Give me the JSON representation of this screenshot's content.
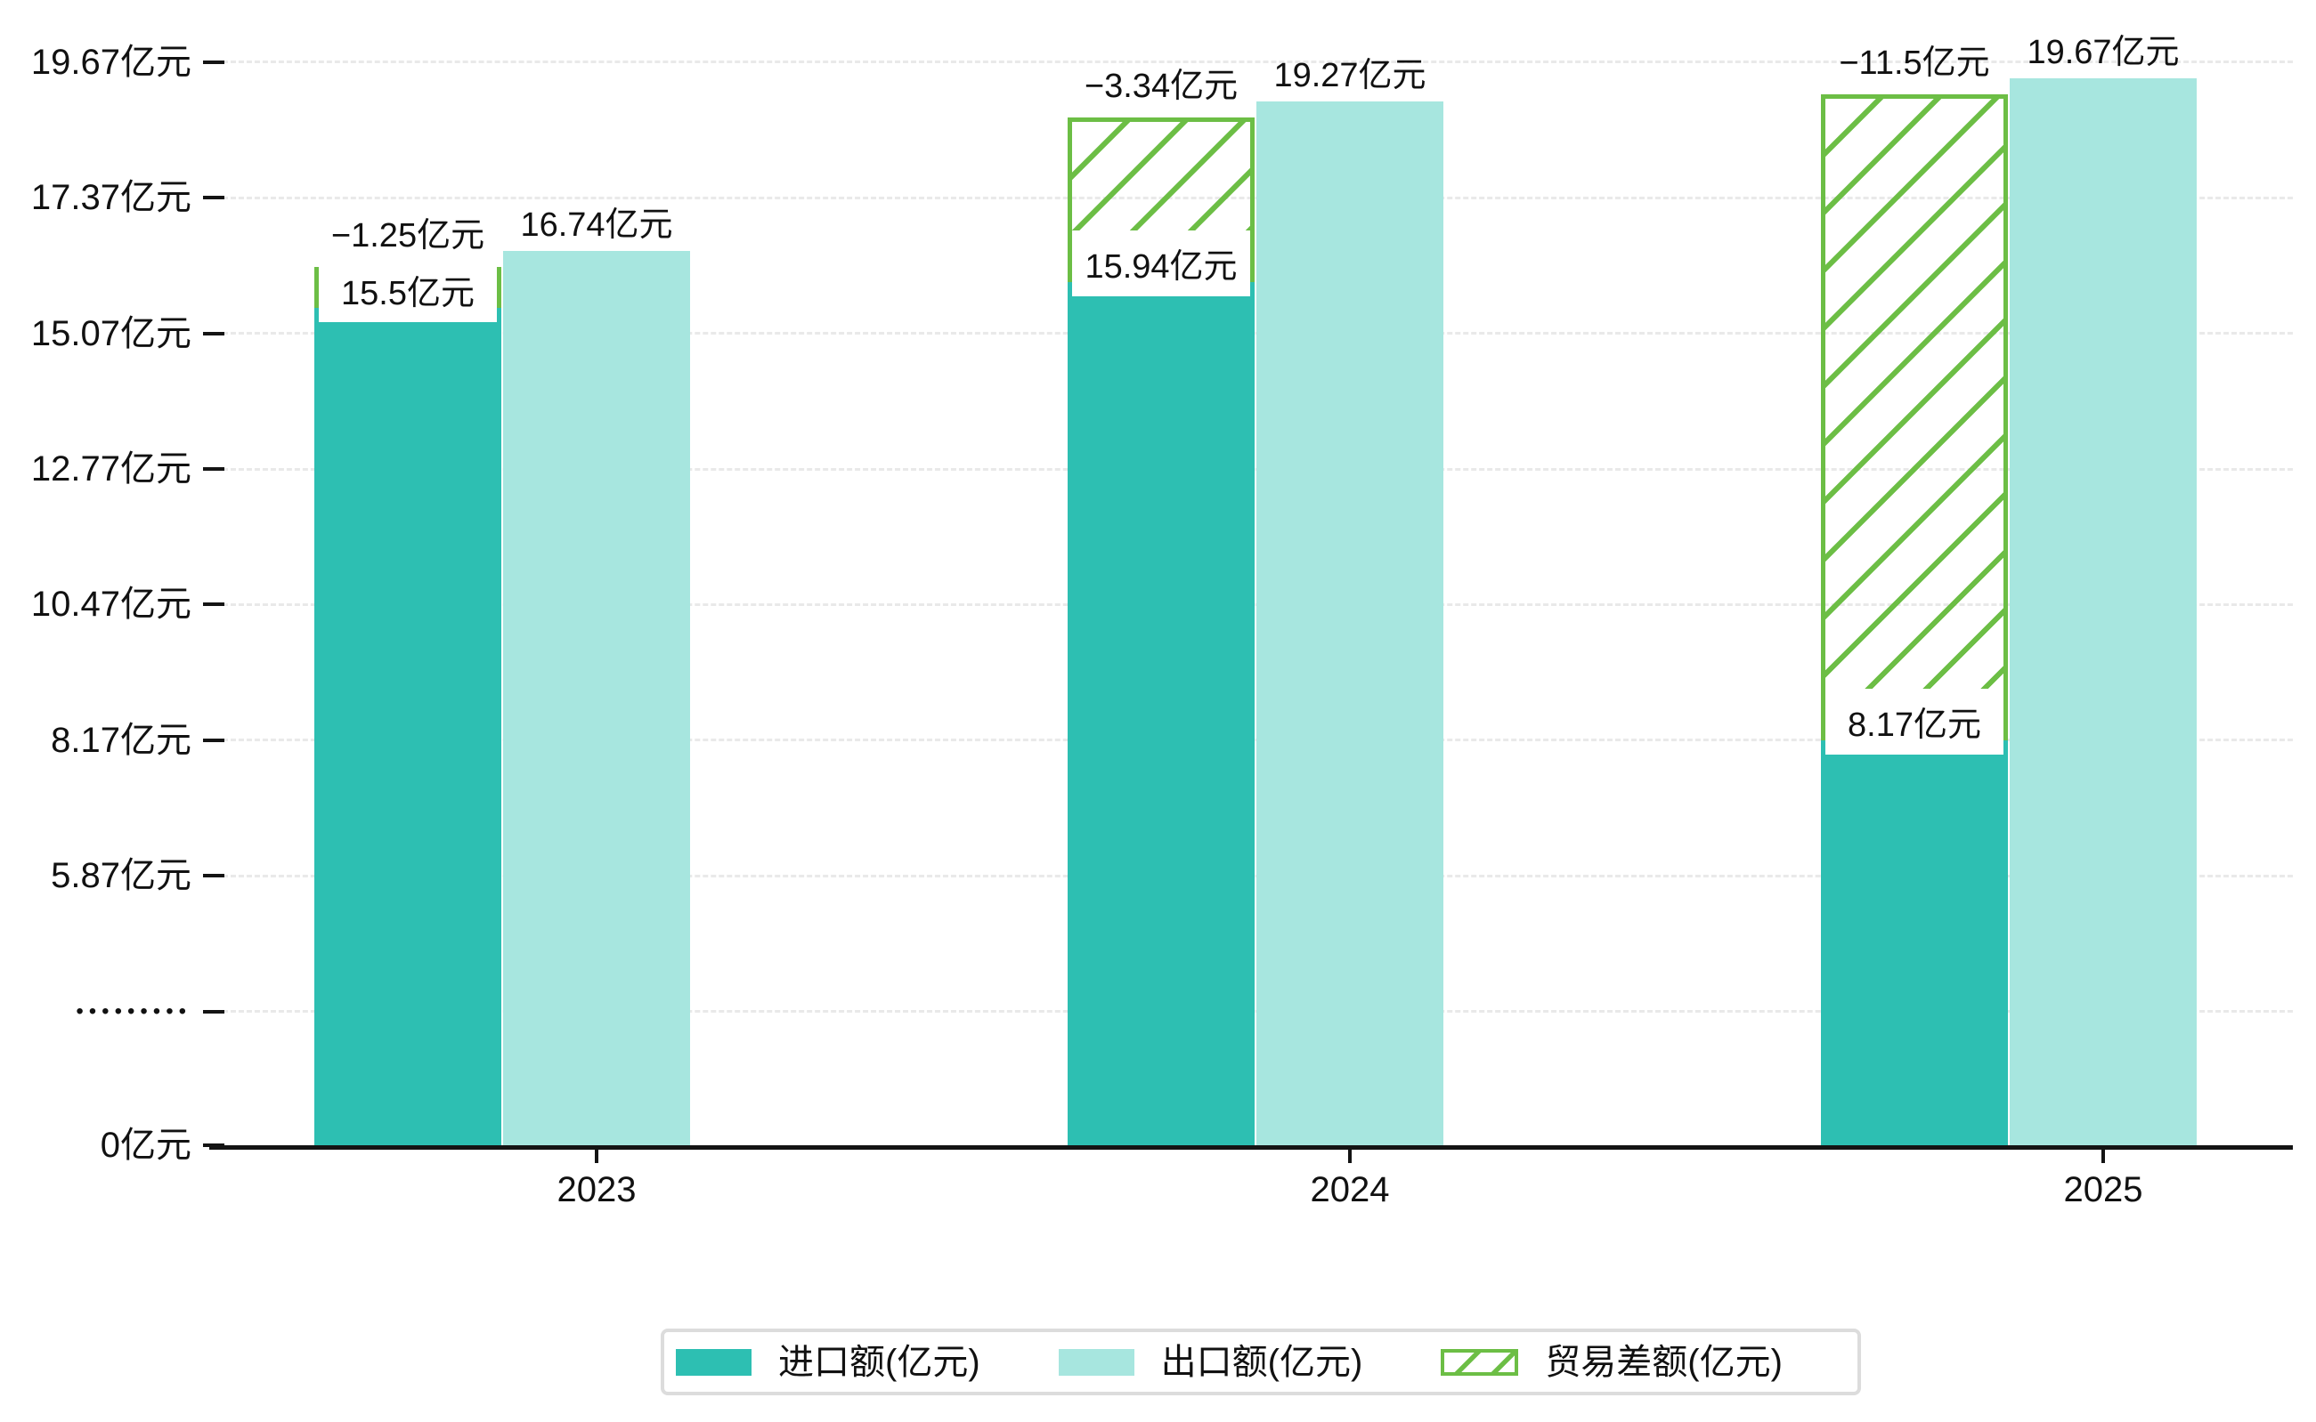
{
  "chart_data": {
    "type": "bar",
    "title": "",
    "categories": [
      "2023",
      "2024",
      "2025"
    ],
    "unit": "亿元",
    "series": [
      {
        "name": "进口额(亿元)",
        "values": [
          15.5,
          15.94,
          8.17
        ]
      },
      {
        "name": "出口额(亿元)",
        "values": [
          16.74,
          19.27,
          19.67
        ]
      },
      {
        "name": "贸易差额(亿元)",
        "values": [
          -1.25,
          -3.34,
          -11.5
        ],
        "style": "hatched"
      }
    ],
    "bar_labels": {
      "import": [
        "15.5亿元",
        "15.94亿元",
        "8.17亿元"
      ],
      "export": [
        "16.74亿元",
        "19.27亿元",
        "19.67亿元"
      ],
      "balance": [
        "−1.25亿元",
        "−3.34亿元",
        "−11.5亿元"
      ]
    },
    "y_axis": {
      "broken_axis": true,
      "ticks": [
        {
          "label": "19.67亿元",
          "value": 19.67
        },
        {
          "label": "17.37亿元",
          "value": 17.37
        },
        {
          "label": "15.07亿元",
          "value": 15.07
        },
        {
          "label": "12.77亿元",
          "value": 12.77
        },
        {
          "label": "10.47亿元",
          "value": 10.47
        },
        {
          "label": "8.17亿元",
          "value": 8.17
        },
        {
          "label": "5.87亿元",
          "value": 5.87
        },
        {
          "label": "•••••••••",
          "value": null
        },
        {
          "label": "0亿元",
          "value": 0
        }
      ]
    },
    "x_axis": {
      "labels": [
        "2023",
        "2024",
        "2025"
      ]
    },
    "legend": {
      "items": [
        {
          "label": "进口额(亿元)"
        },
        {
          "label": "出口额(亿元)"
        },
        {
          "label": "贸易差额(亿元)"
        }
      ],
      "position": "bottom"
    },
    "grid": "dashed-horizontal"
  },
  "colors": {
    "import_bar": "#2DBFB2",
    "export_bar": "#A7E6DF",
    "balance_hatch": "#6CBE45",
    "axis": "#141414",
    "gridline": "#E9E9E9",
    "legend_border": "#DCDCDC",
    "text": "#111111",
    "background": "#FFFFFF"
  }
}
